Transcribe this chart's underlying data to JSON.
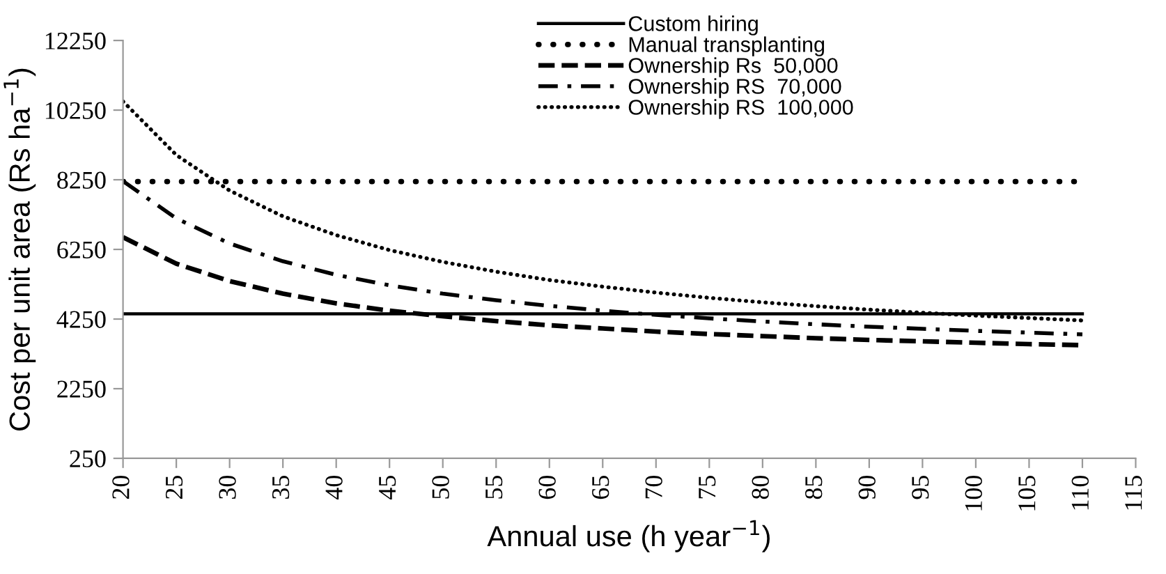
{
  "chart_data": {
    "type": "line",
    "xlabel": "Annual use (h year$^{−1}$)",
    "ylabel": "Cost per unit area (Rs ha$^{−1}$)",
    "x": [
      20,
      25,
      30,
      35,
      40,
      45,
      50,
      55,
      60,
      65,
      70,
      75,
      80,
      85,
      90,
      95,
      100,
      105,
      110
    ],
    "series": [
      {
        "name": "Custom hiring",
        "color": "#000000",
        "line_style": "solid",
        "values": [
          4400,
          4400,
          4400,
          4400,
          4400,
          4400,
          4400,
          4400,
          4400,
          4400,
          4400,
          4400,
          4400,
          4400,
          4400,
          4400,
          4400,
          4400,
          4400
        ]
      },
      {
        "name": "Manual transplanting",
        "color": "#000000",
        "line_style": "dotted",
        "values": [
          8200,
          8200,
          8200,
          8200,
          8200,
          8200,
          8200,
          8200,
          8200,
          8200,
          8200,
          8200,
          8200,
          8200,
          8200,
          8200,
          8200,
          8200,
          8200
        ]
      },
      {
        "name": "Ownership Rs  50,000",
        "color": "#000000",
        "line_style": "dashed",
        "values": [
          6600,
          5840,
          5340,
          4980,
          4700,
          4490,
          4330,
          4190,
          4070,
          3980,
          3890,
          3820,
          3760,
          3700,
          3650,
          3610,
          3570,
          3530,
          3500
        ]
      },
      {
        "name": "Ownership RS  70,000",
        "color": "#000000",
        "line_style": "dashdot",
        "values": [
          8210,
          7140,
          6420,
          5910,
          5520,
          5220,
          4980,
          4790,
          4630,
          4490,
          4370,
          4270,
          4180,
          4100,
          4030,
          3970,
          3910,
          3860,
          3810
        ]
      },
      {
        "name": "Ownership RS  100,000",
        "color": "#000000",
        "line_style": "fine dotted",
        "values": [
          10500,
          8960,
          7940,
          7200,
          6660,
          6230,
          5890,
          5610,
          5370,
          5180,
          5010,
          4860,
          4730,
          4620,
          4520,
          4430,
          4350,
          4280,
          4210
        ]
      }
    ],
    "xlim": [
      20,
      115
    ],
    "xticks": [
      20,
      25,
      30,
      35,
      40,
      45,
      50,
      55,
      60,
      65,
      70,
      75,
      80,
      85,
      90,
      95,
      100,
      105,
      110,
      115
    ],
    "ylim": [
      250,
      12250
    ],
    "yticks": [
      250,
      2250,
      4250,
      6250,
      8250,
      10250,
      12250
    ],
    "grid": false,
    "legend": "top right",
    "marker": "none"
  }
}
